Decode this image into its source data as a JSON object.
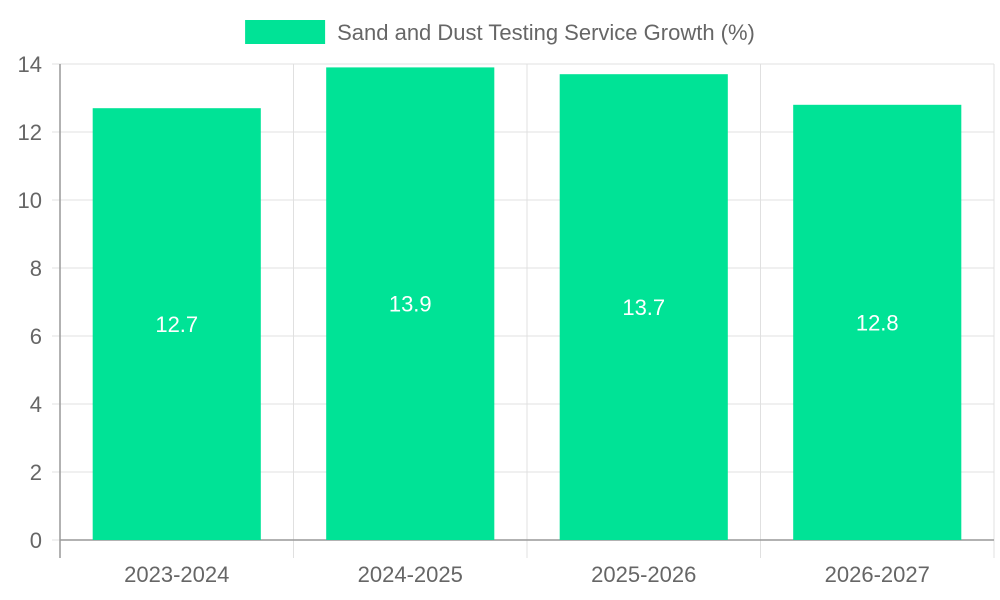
{
  "colors": {
    "bar": "#00e396",
    "grid": "#e0e0e0",
    "axis": "#999999",
    "text": "#666666",
    "data_label": "#ffffff"
  },
  "chart_data": {
    "type": "bar",
    "categories": [
      "2023-2024",
      "2024-2025",
      "2025-2026",
      "2026-2027"
    ],
    "series": [
      {
        "name": "Sand and Dust Testing Service Growth (%)",
        "values": [
          12.7,
          13.9,
          13.7,
          12.8
        ]
      }
    ],
    "ylim": [
      0,
      14
    ],
    "yticks": [
      0,
      2,
      4,
      6,
      8,
      10,
      12,
      14
    ],
    "grid": true,
    "legend": "top-center",
    "data_labels": true
  }
}
